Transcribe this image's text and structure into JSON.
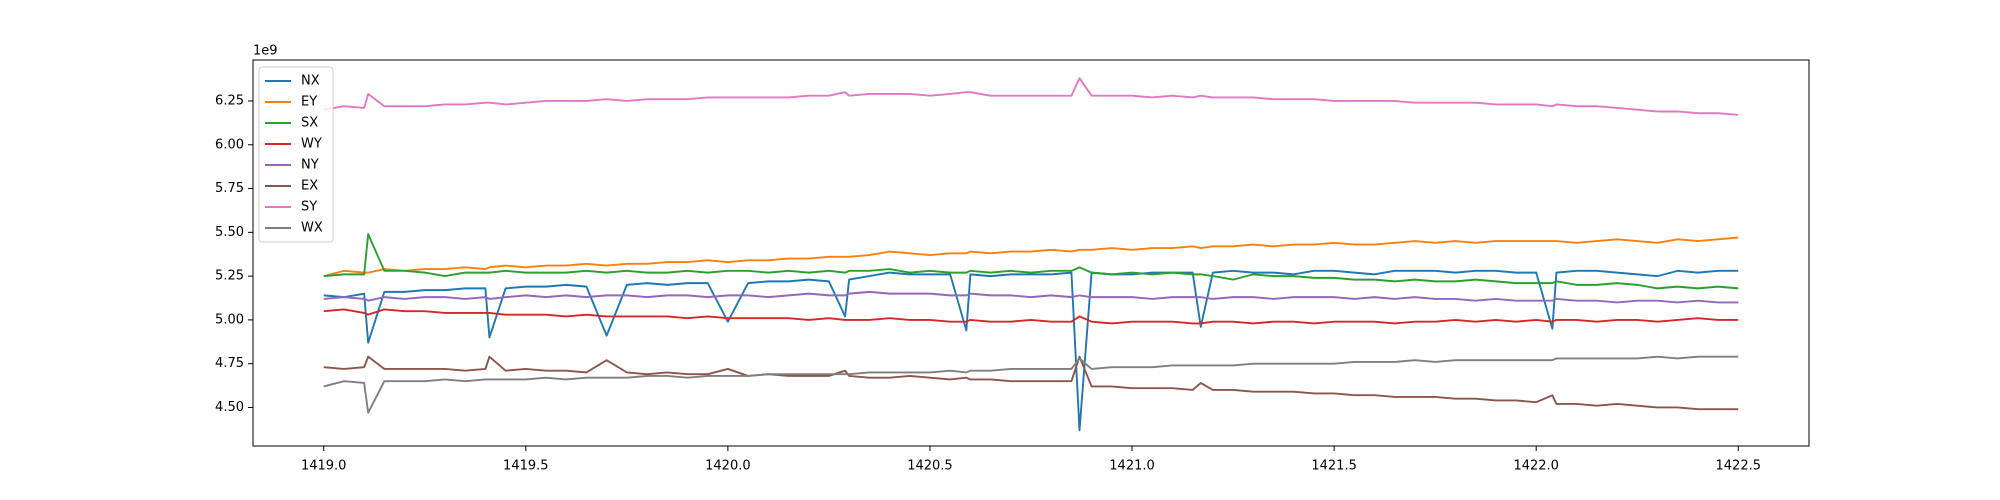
{
  "chart_data": {
    "type": "line",
    "x": [
      1419.0,
      1419.05,
      1419.1,
      1419.11,
      1419.15,
      1419.2,
      1419.25,
      1419.3,
      1419.35,
      1419.4,
      1419.41,
      1419.45,
      1419.5,
      1419.55,
      1419.6,
      1419.65,
      1419.7,
      1419.75,
      1419.8,
      1419.85,
      1419.9,
      1419.95,
      1420.0,
      1420.05,
      1420.1,
      1420.15,
      1420.2,
      1420.25,
      1420.29,
      1420.3,
      1420.35,
      1420.4,
      1420.45,
      1420.5,
      1420.55,
      1420.59,
      1420.6,
      1420.65,
      1420.7,
      1420.75,
      1420.8,
      1420.85,
      1420.87,
      1420.9,
      1420.95,
      1421.0,
      1421.05,
      1421.1,
      1421.15,
      1421.17,
      1421.2,
      1421.25,
      1421.3,
      1421.35,
      1421.4,
      1421.45,
      1421.5,
      1421.55,
      1421.6,
      1421.65,
      1421.7,
      1421.75,
      1421.8,
      1421.85,
      1421.9,
      1421.95,
      1422.0,
      1422.04,
      1422.05,
      1422.1,
      1422.15,
      1422.2,
      1422.25,
      1422.3,
      1422.35,
      1422.4,
      1422.45,
      1422.5
    ],
    "series": [
      {
        "name": "NX",
        "color": "#1f77b4",
        "values": [
          5.14,
          5.13,
          5.15,
          4.87,
          5.16,
          5.16,
          5.17,
          5.17,
          5.18,
          5.18,
          4.9,
          5.18,
          5.19,
          5.19,
          5.2,
          5.19,
          4.91,
          5.2,
          5.21,
          5.2,
          5.21,
          5.21,
          4.99,
          5.21,
          5.22,
          5.22,
          5.23,
          5.22,
          5.02,
          5.23,
          5.25,
          5.27,
          5.26,
          5.26,
          5.26,
          4.94,
          5.26,
          5.25,
          5.26,
          5.26,
          5.26,
          5.27,
          4.37,
          5.27,
          5.26,
          5.26,
          5.27,
          5.27,
          5.27,
          4.96,
          5.27,
          5.28,
          5.27,
          5.27,
          5.26,
          5.28,
          5.28,
          5.27,
          5.26,
          5.28,
          5.28,
          5.28,
          5.27,
          5.28,
          5.28,
          5.27,
          5.27,
          4.95,
          5.27,
          5.28,
          5.28,
          5.27,
          5.26,
          5.25,
          5.28,
          5.27,
          5.28,
          5.28
        ]
      },
      {
        "name": "EY",
        "color": "#ff7f0e",
        "values": [
          5.25,
          5.28,
          5.27,
          5.27,
          5.29,
          5.28,
          5.29,
          5.29,
          5.3,
          5.29,
          5.3,
          5.31,
          5.3,
          5.31,
          5.31,
          5.32,
          5.31,
          5.32,
          5.32,
          5.33,
          5.33,
          5.34,
          5.33,
          5.34,
          5.34,
          5.35,
          5.35,
          5.36,
          5.36,
          5.36,
          5.37,
          5.39,
          5.38,
          5.37,
          5.38,
          5.38,
          5.39,
          5.38,
          5.39,
          5.39,
          5.4,
          5.39,
          5.4,
          5.4,
          5.41,
          5.4,
          5.41,
          5.41,
          5.42,
          5.41,
          5.42,
          5.42,
          5.43,
          5.42,
          5.43,
          5.43,
          5.44,
          5.43,
          5.43,
          5.44,
          5.45,
          5.44,
          5.45,
          5.44,
          5.45,
          5.45,
          5.45,
          5.45,
          5.45,
          5.44,
          5.45,
          5.46,
          5.45,
          5.44,
          5.46,
          5.45,
          5.46,
          5.47
        ]
      },
      {
        "name": "SX",
        "color": "#2ca02c",
        "values": [
          5.25,
          5.26,
          5.26,
          5.49,
          5.28,
          5.28,
          5.27,
          5.25,
          5.27,
          5.27,
          5.27,
          5.28,
          5.27,
          5.27,
          5.27,
          5.28,
          5.27,
          5.28,
          5.27,
          5.27,
          5.28,
          5.27,
          5.28,
          5.28,
          5.27,
          5.28,
          5.27,
          5.28,
          5.27,
          5.28,
          5.28,
          5.29,
          5.27,
          5.28,
          5.27,
          5.27,
          5.28,
          5.27,
          5.28,
          5.27,
          5.28,
          5.28,
          5.3,
          5.27,
          5.26,
          5.27,
          5.26,
          5.27,
          5.26,
          5.26,
          5.25,
          5.23,
          5.26,
          5.25,
          5.25,
          5.24,
          5.24,
          5.23,
          5.23,
          5.22,
          5.23,
          5.22,
          5.22,
          5.23,
          5.22,
          5.21,
          5.21,
          5.21,
          5.22,
          5.2,
          5.2,
          5.21,
          5.2,
          5.18,
          5.19,
          5.18,
          5.19,
          5.18
        ]
      },
      {
        "name": "WY",
        "color": "#d62728",
        "values": [
          5.05,
          5.06,
          5.04,
          5.03,
          5.06,
          5.05,
          5.05,
          5.04,
          5.04,
          5.04,
          5.04,
          5.03,
          5.03,
          5.03,
          5.02,
          5.03,
          5.02,
          5.02,
          5.02,
          5.02,
          5.01,
          5.02,
          5.01,
          5.01,
          5.01,
          5.01,
          5.0,
          5.01,
          5.0,
          5.0,
          5.0,
          5.01,
          5.0,
          5.0,
          4.99,
          4.99,
          5.0,
          4.99,
          4.99,
          5.0,
          4.99,
          4.99,
          5.02,
          4.99,
          4.98,
          4.99,
          4.99,
          4.99,
          4.98,
          4.98,
          4.99,
          4.99,
          4.98,
          4.99,
          4.99,
          4.98,
          4.99,
          4.99,
          4.99,
          4.98,
          4.99,
          4.99,
          5.0,
          4.99,
          5.0,
          4.99,
          5.0,
          4.99,
          5.0,
          5.0,
          4.99,
          5.0,
          5.0,
          4.99,
          5.0,
          5.01,
          5.0,
          5.0
        ]
      },
      {
        "name": "NY",
        "color": "#9467bd",
        "values": [
          5.12,
          5.13,
          5.12,
          5.11,
          5.13,
          5.12,
          5.13,
          5.13,
          5.12,
          5.13,
          5.12,
          5.13,
          5.14,
          5.13,
          5.14,
          5.13,
          5.14,
          5.14,
          5.13,
          5.14,
          5.14,
          5.13,
          5.14,
          5.14,
          5.13,
          5.14,
          5.15,
          5.14,
          5.14,
          5.15,
          5.16,
          5.15,
          5.15,
          5.15,
          5.14,
          5.14,
          5.15,
          5.14,
          5.14,
          5.13,
          5.14,
          5.13,
          5.14,
          5.13,
          5.13,
          5.13,
          5.12,
          5.13,
          5.13,
          5.13,
          5.12,
          5.13,
          5.13,
          5.12,
          5.13,
          5.13,
          5.13,
          5.12,
          5.13,
          5.12,
          5.13,
          5.12,
          5.12,
          5.11,
          5.12,
          5.11,
          5.11,
          5.11,
          5.12,
          5.11,
          5.11,
          5.1,
          5.11,
          5.11,
          5.1,
          5.11,
          5.1,
          5.1
        ]
      },
      {
        "name": "EX",
        "color": "#8c564b",
        "values": [
          4.73,
          4.72,
          4.73,
          4.79,
          4.72,
          4.72,
          4.72,
          4.72,
          4.71,
          4.72,
          4.79,
          4.71,
          4.72,
          4.71,
          4.71,
          4.7,
          4.77,
          4.7,
          4.69,
          4.7,
          4.69,
          4.69,
          4.72,
          4.68,
          4.69,
          4.68,
          4.68,
          4.68,
          4.71,
          4.68,
          4.67,
          4.67,
          4.68,
          4.67,
          4.66,
          4.67,
          4.66,
          4.66,
          4.65,
          4.65,
          4.65,
          4.65,
          4.79,
          4.62,
          4.62,
          4.61,
          4.61,
          4.61,
          4.6,
          4.64,
          4.6,
          4.6,
          4.59,
          4.59,
          4.59,
          4.58,
          4.58,
          4.57,
          4.57,
          4.56,
          4.56,
          4.56,
          4.55,
          4.55,
          4.54,
          4.54,
          4.53,
          4.57,
          4.52,
          4.52,
          4.51,
          4.52,
          4.51,
          4.5,
          4.5,
          4.49,
          4.49,
          4.49
        ]
      },
      {
        "name": "SY",
        "color": "#e377c2",
        "values": [
          6.2,
          6.22,
          6.21,
          6.29,
          6.22,
          6.22,
          6.22,
          6.23,
          6.23,
          6.24,
          6.24,
          6.23,
          6.24,
          6.25,
          6.25,
          6.25,
          6.26,
          6.25,
          6.26,
          6.26,
          6.26,
          6.27,
          6.27,
          6.27,
          6.27,
          6.27,
          6.28,
          6.28,
          6.3,
          6.28,
          6.29,
          6.29,
          6.29,
          6.28,
          6.29,
          6.3,
          6.3,
          6.28,
          6.28,
          6.28,
          6.28,
          6.28,
          6.38,
          6.28,
          6.28,
          6.28,
          6.27,
          6.28,
          6.27,
          6.28,
          6.27,
          6.27,
          6.27,
          6.26,
          6.26,
          6.26,
          6.25,
          6.25,
          6.25,
          6.25,
          6.24,
          6.24,
          6.24,
          6.24,
          6.23,
          6.23,
          6.23,
          6.22,
          6.23,
          6.22,
          6.22,
          6.21,
          6.2,
          6.19,
          6.19,
          6.18,
          6.18,
          6.17
        ]
      },
      {
        "name": "WX",
        "color": "#7f7f7f",
        "values": [
          4.62,
          4.65,
          4.64,
          4.47,
          4.65,
          4.65,
          4.65,
          4.66,
          4.65,
          4.66,
          4.66,
          4.66,
          4.66,
          4.67,
          4.66,
          4.67,
          4.67,
          4.67,
          4.68,
          4.68,
          4.67,
          4.68,
          4.68,
          4.68,
          4.69,
          4.69,
          4.69,
          4.69,
          4.69,
          4.69,
          4.7,
          4.7,
          4.7,
          4.7,
          4.71,
          4.7,
          4.71,
          4.71,
          4.72,
          4.72,
          4.72,
          4.72,
          4.78,
          4.72,
          4.73,
          4.73,
          4.73,
          4.74,
          4.74,
          4.74,
          4.74,
          4.74,
          4.75,
          4.75,
          4.75,
          4.75,
          4.75,
          4.76,
          4.76,
          4.76,
          4.77,
          4.76,
          4.77,
          4.77,
          4.77,
          4.77,
          4.77,
          4.77,
          4.78,
          4.78,
          4.78,
          4.78,
          4.78,
          4.79,
          4.78,
          4.79,
          4.79,
          4.79
        ]
      }
    ],
    "xlim": [
      1418.825,
      1422.675
    ],
    "ylim": [
      4.28,
      6.484
    ],
    "xticks": [
      {
        "value": 1419,
        "label": "1419.0"
      },
      1419.5,
      {
        "value": 1420,
        "label": "1420.0"
      },
      1420.5,
      {
        "value": 1421,
        "label": "1421.0"
      },
      1421.5,
      {
        "value": 1422,
        "label": "1422.0"
      },
      1422.5
    ],
    "yticks": [
      {
        "value": 4.5,
        "label": "4.50"
      },
      4.75,
      {
        "value": 5,
        "label": "5.00"
      },
      5.25,
      {
        "value": 5.5,
        "label": "5.50"
      },
      5.75,
      {
        "value": 6,
        "label": "6.00"
      },
      6.25
    ],
    "y_offset_label": "1e9",
    "legend": "upper left",
    "grid": false
  }
}
